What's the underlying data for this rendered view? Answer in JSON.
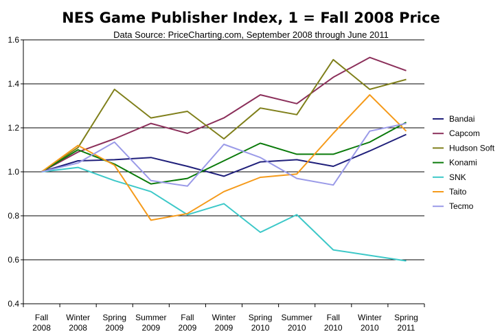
{
  "chart_data": {
    "type": "line",
    "title": "NES Game Publisher Index, 1 = Fall 2008 Price",
    "subtitle": "Data Source: PriceCharting.com, September 2008 through June 2011",
    "xlabel": "",
    "ylabel": "",
    "categories": [
      [
        "Fall",
        "2008"
      ],
      [
        "Winter",
        "2008"
      ],
      [
        "Spring",
        "2009"
      ],
      [
        "Summer",
        "2009"
      ],
      [
        "Fall",
        "2009"
      ],
      [
        "Winter",
        "2009"
      ],
      [
        "Spring",
        "2010"
      ],
      [
        "Summer",
        "2010"
      ],
      [
        "Fall",
        "2010"
      ],
      [
        "Winter",
        "2010"
      ],
      [
        "Spring",
        "2011"
      ]
    ],
    "ylim": [
      0.4,
      1.6
    ],
    "yticks": [
      "0.4",
      "0.6",
      "0.8",
      "1.0",
      "1.2",
      "1.4",
      "1.6"
    ],
    "grid": true,
    "legend_position": "right",
    "series": [
      {
        "name": "Bandai",
        "color": "#1f1f7a",
        "values": [
          1.0,
          1.05,
          1.055,
          1.065,
          1.025,
          0.98,
          1.045,
          1.055,
          1.025,
          1.095,
          1.17
        ]
      },
      {
        "name": "Capcom",
        "color": "#8b2f5a",
        "values": [
          1.0,
          1.09,
          1.15,
          1.22,
          1.175,
          1.245,
          1.35,
          1.31,
          1.43,
          1.52,
          1.46
        ]
      },
      {
        "name": "Hudson Soft",
        "color": "#7f7f1a",
        "values": [
          1.0,
          1.11,
          1.375,
          1.245,
          1.275,
          1.15,
          1.29,
          1.26,
          1.51,
          1.375,
          1.42
        ]
      },
      {
        "name": "Konami",
        "color": "#0a7a0a",
        "values": [
          1.0,
          1.1,
          1.035,
          0.945,
          0.97,
          1.05,
          1.13,
          1.08,
          1.08,
          1.135,
          1.225
        ]
      },
      {
        "name": "SNK",
        "color": "#3cc8c8",
        "values": [
          1.0,
          1.02,
          0.96,
          0.91,
          0.805,
          0.855,
          0.725,
          0.805,
          0.645,
          0.62,
          0.595
        ]
      },
      {
        "name": "Taito",
        "color": "#f59a1a",
        "values": [
          1.0,
          1.12,
          1.03,
          0.78,
          0.81,
          0.91,
          0.975,
          0.99,
          1.175,
          1.35,
          1.185
        ]
      },
      {
        "name": "Tecmo",
        "color": "#9a9ae8",
        "values": [
          1.0,
          1.04,
          1.135,
          0.96,
          0.935,
          1.125,
          1.065,
          0.97,
          0.94,
          1.185,
          1.22
        ]
      }
    ]
  }
}
